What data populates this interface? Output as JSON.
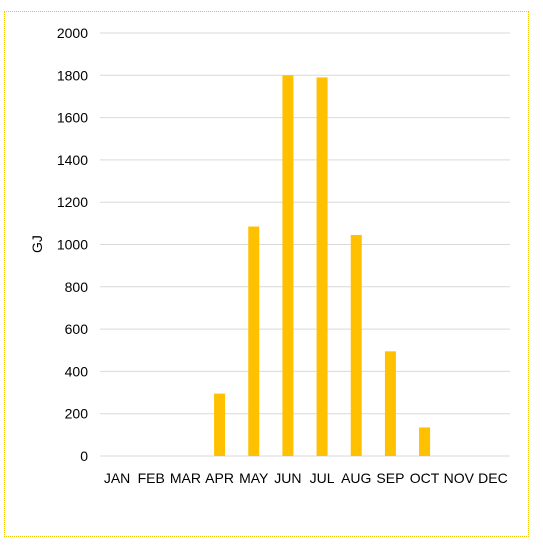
{
  "chart_data": {
    "type": "bar",
    "title": "",
    "xlabel": "",
    "ylabel": "GJ",
    "categories": [
      "JAN",
      "FEB",
      "MAR",
      "APR",
      "MAY",
      "JUN",
      "JUL",
      "AUG",
      "SEP",
      "OCT",
      "NOV",
      "DEC"
    ],
    "values": [
      0,
      0,
      0,
      295,
      1085,
      1800,
      1790,
      1045,
      495,
      135,
      0,
      0
    ],
    "ylim": [
      0,
      2000
    ],
    "yticks": [
      "0",
      "200",
      "400",
      "600",
      "800",
      "1000",
      "1200",
      "1400",
      "1600",
      "1800",
      "2000"
    ],
    "grid": true,
    "legend": "none",
    "bar_color": "#ffc000",
    "grid_color": "#d9d9d9",
    "frame_color": "#f2c200"
  }
}
